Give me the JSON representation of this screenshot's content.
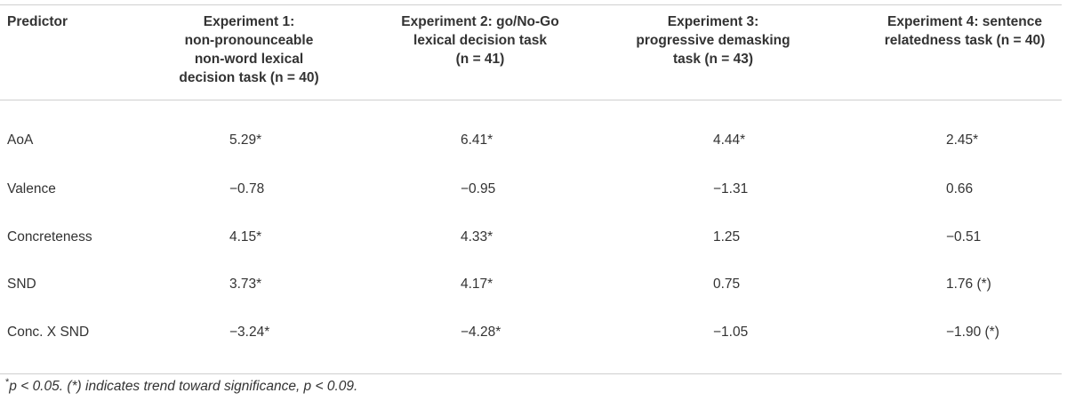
{
  "table": {
    "header": {
      "predictor": "Predictor",
      "exp1": [
        "Experiment 1:",
        "non-pronounceable",
        "non-word lexical",
        "decision task (n = 40)"
      ],
      "exp2": [
        "Experiment 2: go/No-Go",
        "lexical decision task",
        "(n = 41)"
      ],
      "exp3": [
        "Experiment 3:",
        "progressive demasking",
        "task (n = 43)"
      ],
      "exp4": [
        "Experiment 4: sentence",
        "relatedness task (n = 40)"
      ]
    },
    "rows": [
      {
        "label": "AoA",
        "v1": "5.29*",
        "v2": "6.41*",
        "v3": "4.44*",
        "v4": "2.45*"
      },
      {
        "label": "Valence",
        "v1": "−0.78",
        "v2": "−0.95",
        "v3": "−1.31",
        "v4": "0.66"
      },
      {
        "label": "Concreteness",
        "v1": "4.15*",
        "v2": "4.33*",
        "v3": "1.25",
        "v4": "−0.51"
      },
      {
        "label": "SND",
        "v1": "3.73*",
        "v2": "4.17*",
        "v3": "0.75",
        "v4": "1.76 (*)"
      },
      {
        "label": "Conc. X SND",
        "v1": "−3.24*",
        "v2": "−4.28*",
        "v3": "−1.05",
        "v4": "−1.90 (*)"
      }
    ]
  },
  "footnote": {
    "marker": "*",
    "text": "p < 0.05. (*) indicates trend toward significance, p < 0.09."
  }
}
